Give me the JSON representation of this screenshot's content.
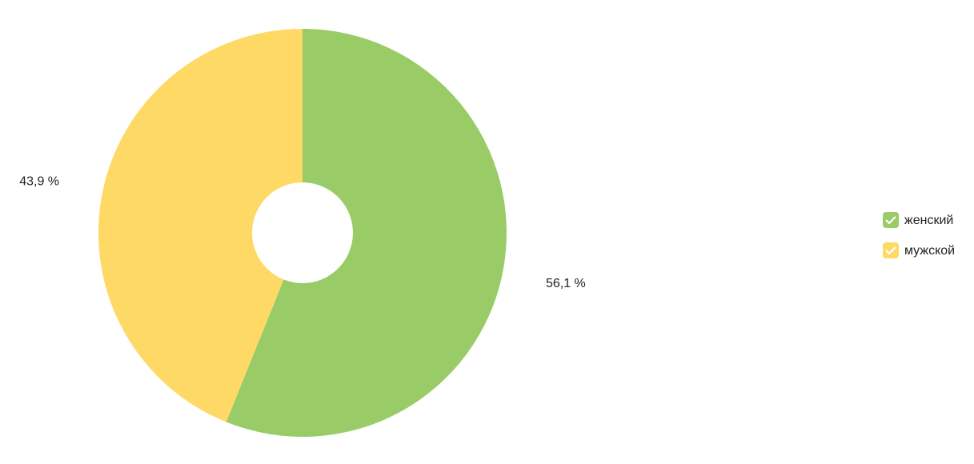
{
  "chart_data": {
    "type": "donut",
    "categories": [
      "женский",
      "мужской"
    ],
    "values": [
      56.1,
      43.9
    ],
    "value_labels": [
      "56,1 %",
      "43,9 %"
    ],
    "colors": [
      "#99cc66",
      "#ffd966"
    ],
    "legend": "right"
  }
}
